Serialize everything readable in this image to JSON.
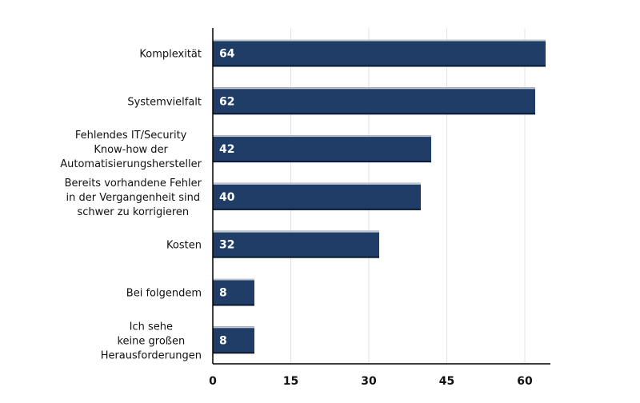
{
  "chart_data": {
    "type": "bar",
    "orientation": "horizontal",
    "categories": [
      [
        "Komplexität"
      ],
      [
        "Systemvielfalt"
      ],
      [
        "Fehlendes IT/Security",
        "Know-how der",
        "Automatisierungshersteller"
      ],
      [
        "Bereits vorhandene Fehler",
        "in der Vergangenheit sind",
        "schwer zu korrigieren"
      ],
      [
        "Kosten"
      ],
      [
        "Bei folgendem"
      ],
      [
        "Ich sehe",
        "keine großen",
        "Herausforderungen"
      ]
    ],
    "values": [
      64,
      62,
      42,
      40,
      32,
      8,
      8
    ],
    "xticks": [
      "0",
      "15",
      "30",
      "45",
      "60"
    ],
    "xlim": [
      0,
      65
    ],
    "grid": true,
    "title": "",
    "xlabel": "",
    "ylabel": "",
    "bar_color": "#1f3d66",
    "bar_highlight_color": "#b9c6d8",
    "data_labels": true
  }
}
